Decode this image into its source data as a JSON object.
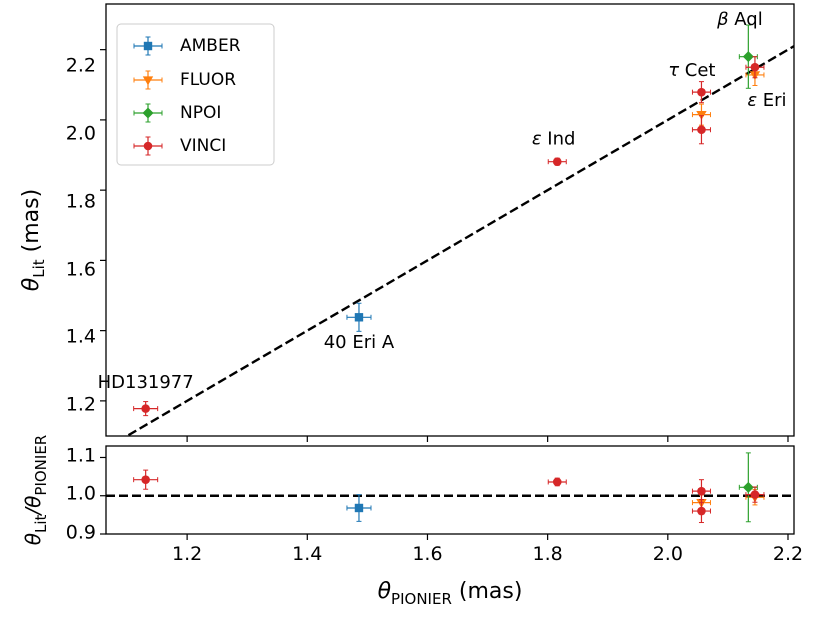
{
  "chart_data": [
    {
      "type": "scatter",
      "name": "main",
      "xlabel": "θPIONIER (mas)",
      "ylabel_main": "θ",
      "ylabel_sub": "Lit",
      "ylabel_unit": " (mas)",
      "xlim": [
        1.065,
        2.21
      ],
      "ylim": [
        1.1,
        2.33
      ],
      "yticks": [
        "1.2",
        "1.4",
        "1.6",
        "1.8",
        "2.0",
        "2.2"
      ],
      "ytick_values": [
        1.2,
        1.4,
        1.6,
        1.8,
        2.0,
        2.2
      ],
      "reference_line": {
        "style": "dashed",
        "slope": 1,
        "intercept": 0
      },
      "legend": {
        "position": "top-left",
        "entries": [
          {
            "label": "AMBER",
            "series": "AMBER"
          },
          {
            "label": "FLUOR",
            "series": "FLUOR"
          },
          {
            "label": "NPOI",
            "series": "NPOI"
          },
          {
            "label": "VINCI",
            "series": "VINCI"
          }
        ]
      },
      "series": [
        {
          "name": "AMBER",
          "color": "#1f77b4",
          "marker": "square",
          "points": [
            {
              "x": 1.486,
              "y": 1.438,
              "xerr": 0.02,
              "yerr": 0.04
            }
          ]
        },
        {
          "name": "FLUOR",
          "color": "#ff7f0e",
          "marker": "triangle-down",
          "points": [
            {
              "x": 2.056,
              "y": 2.015,
              "xerr": 0.015,
              "yerr": 0.03
            },
            {
              "x": 2.145,
              "y": 2.128,
              "xerr": 0.015,
              "yerr": 0.03
            }
          ]
        },
        {
          "name": "NPOI",
          "color": "#2ca02c",
          "marker": "diamond",
          "points": [
            {
              "x": 2.134,
              "y": 2.18,
              "xerr": 0.015,
              "yerr": 0.09
            }
          ]
        },
        {
          "name": "VINCI",
          "color": "#d62728",
          "marker": "circle",
          "points": [
            {
              "x": 1.131,
              "y": 1.178,
              "xerr": 0.02,
              "yerr": 0.02
            },
            {
              "x": 1.816,
              "y": 1.881,
              "xerr": 0.015,
              "yerr": 0.01
            },
            {
              "x": 2.056,
              "y": 2.079,
              "xerr": 0.015,
              "yerr": 0.03
            },
            {
              "x": 2.056,
              "y": 1.972,
              "xerr": 0.015,
              "yerr": 0.04
            },
            {
              "x": 2.145,
              "y": 2.15,
              "xerr": 0.015,
              "yerr": 0.03
            }
          ]
        }
      ],
      "annotations": [
        {
          "text": "HD131977",
          "x": 1.131,
          "y": 1.236,
          "anchor": "middle"
        },
        {
          "text": "40 Eri A",
          "x": 1.486,
          "y": 1.35,
          "anchor": "middle"
        },
        {
          "text": "ε Ind",
          "x": 1.81,
          "y": 1.93,
          "anchor": "middle"
        },
        {
          "text": "τ Cet",
          "x": 2.04,
          "y": 2.125,
          "anchor": "middle"
        },
        {
          "text": "β Aql",
          "x": 2.12,
          "y": 2.27,
          "anchor": "middle"
        },
        {
          "text": "ε Eri",
          "x": 2.165,
          "y": 2.04,
          "anchor": "middle"
        }
      ]
    },
    {
      "type": "scatter",
      "name": "ratio",
      "xlabel": "θPIONIER (mas)",
      "xlabel_main": "θ",
      "xlabel_sub": "PIONIER",
      "xlabel_unit": " (mas)",
      "ylabel": "θLit/θPIONIER",
      "ylabel_main1": "θ",
      "ylabel_sub1": "Lit",
      "ylabel_slash": "/θ",
      "ylabel_sub2": "PIONIER",
      "xlim": [
        1.065,
        2.21
      ],
      "ylim": [
        0.9,
        1.13
      ],
      "xticks": [
        "1.2",
        "1.4",
        "1.6",
        "1.8",
        "2.0",
        "2.2"
      ],
      "xtick_values": [
        1.2,
        1.4,
        1.6,
        1.8,
        2.0,
        2.2
      ],
      "yticks": [
        "0.9",
        "1.0",
        "1.1"
      ],
      "ytick_values": [
        0.9,
        1.0,
        1.1
      ],
      "reference_line": {
        "style": "dashed",
        "y": 1.0
      },
      "series": [
        {
          "name": "AMBER",
          "color": "#1f77b4",
          "marker": "square",
          "points": [
            {
              "x": 1.486,
              "y": 0.968,
              "xerr": 0.02,
              "yerr": 0.035
            }
          ]
        },
        {
          "name": "FLUOR",
          "color": "#ff7f0e",
          "marker": "triangle-down",
          "points": [
            {
              "x": 2.056,
              "y": 0.982,
              "xerr": 0.015,
              "yerr": 0.02
            },
            {
              "x": 2.145,
              "y": 0.996,
              "xerr": 0.015,
              "yerr": 0.02
            }
          ]
        },
        {
          "name": "NPOI",
          "color": "#2ca02c",
          "marker": "diamond",
          "points": [
            {
              "x": 2.134,
              "y": 1.022,
              "xerr": 0.015,
              "yerr": 0.09
            }
          ]
        },
        {
          "name": "VINCI",
          "color": "#d62728",
          "marker": "circle",
          "points": [
            {
              "x": 1.131,
              "y": 1.042,
              "xerr": 0.02,
              "yerr": 0.025
            },
            {
              "x": 1.816,
              "y": 1.036,
              "xerr": 0.015,
              "yerr": 0.01
            },
            {
              "x": 2.056,
              "y": 1.012,
              "xerr": 0.015,
              "yerr": 0.03
            },
            {
              "x": 2.056,
              "y": 0.96,
              "xerr": 0.015,
              "yerr": 0.03
            },
            {
              "x": 2.145,
              "y": 1.003,
              "xerr": 0.015,
              "yerr": 0.02
            }
          ]
        }
      ]
    }
  ]
}
